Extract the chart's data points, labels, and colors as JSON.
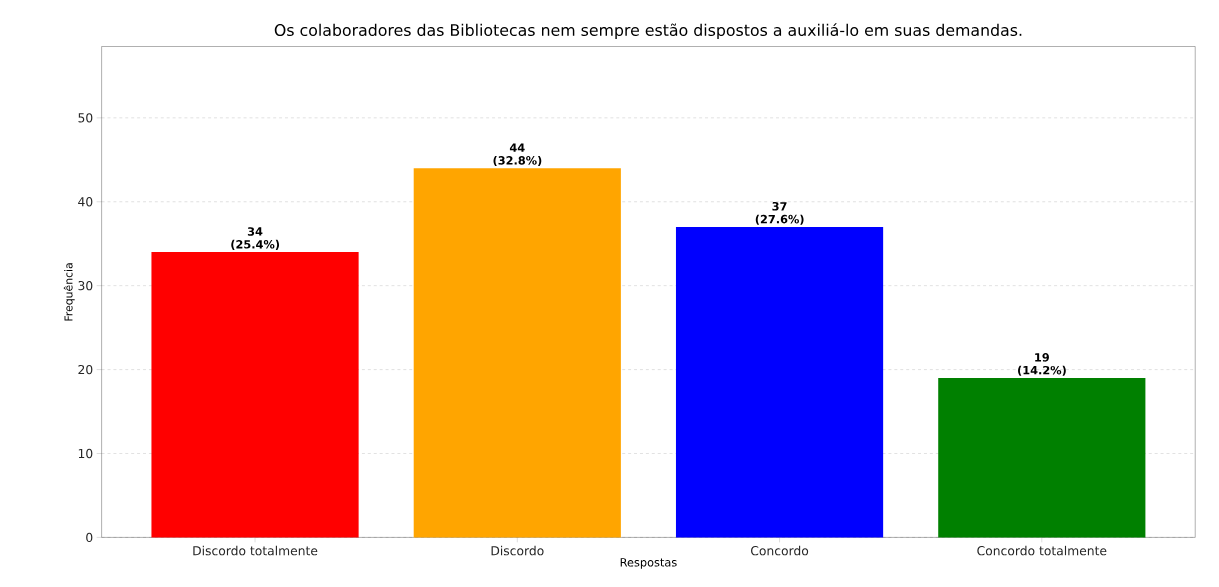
{
  "chart_data": {
    "type": "bar",
    "title": "Os colaboradores das Bibliotecas nem sempre estão dispostos a auxiliá-lo em suas demandas.",
    "xlabel": "Respostas",
    "ylabel": "Frequência",
    "categories": [
      "Discordo totalmente",
      "Discordo",
      "Concordo",
      "Concordo totalmente"
    ],
    "values": [
      34,
      44,
      37,
      19
    ],
    "colors": [
      "#ff0000",
      "#ffa500",
      "#0000ff",
      "#008000"
    ],
    "value_labels": [
      "34 (25.4%)",
      "44 (32.8%)",
      "37 (27.6%)",
      "19 (14.2%)"
    ],
    "ylim": [
      0,
      58.5
    ],
    "yticks": [
      0,
      10,
      20,
      30,
      40,
      50
    ],
    "grid": "y"
  }
}
